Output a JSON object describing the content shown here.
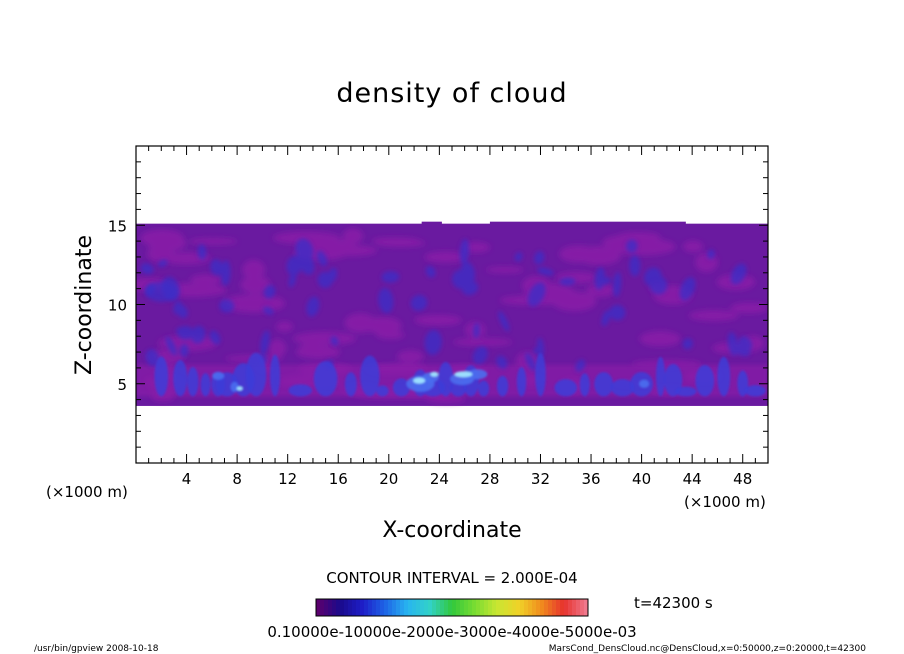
{
  "chart_data": {
    "type": "heatmap",
    "title": "density of cloud",
    "xlabel": "X-coordinate",
    "ylabel": "Z-coordinate",
    "x_unit": "(×1000 m)",
    "y_unit": "(×1000 m)",
    "xlim": [
      0,
      50
    ],
    "ylim": [
      0,
      20
    ],
    "x_ticks": [
      4,
      8,
      12,
      16,
      20,
      24,
      28,
      32,
      36,
      40,
      44,
      48
    ],
    "y_ticks": [
      5,
      10,
      15
    ],
    "cloud_layer_z_range": [
      3.6,
      15.1
    ],
    "contour_interval": "CONTOUR INTERVAL = 2.000E-04",
    "time": "t=42300 s",
    "colorbar": {
      "labels_text": "0.10000e-10000e-2000e-3000e-4000e-5000e-03",
      "colors": [
        "#5a006e",
        "#1a0a8c",
        "#1e1ec8",
        "#1e64e6",
        "#28b4f0",
        "#32d2c8",
        "#32c83c",
        "#78dc32",
        "#c8e632",
        "#f0d228",
        "#f08c1e",
        "#e6322d",
        "#f0788c"
      ]
    },
    "colors": {
      "background_purple": "#6a1aa0",
      "magenta_band": "#8a1fa8",
      "blue_cells": "#3c3cd8",
      "cyan_cores": "#a0e6ff"
    }
  },
  "footer": {
    "left": "/usr/bin/gpview   2008-10-18",
    "right": "MarsCond_DensCloud.nc@DensCloud,x=0:50000,z=0:20000,t=42300"
  }
}
